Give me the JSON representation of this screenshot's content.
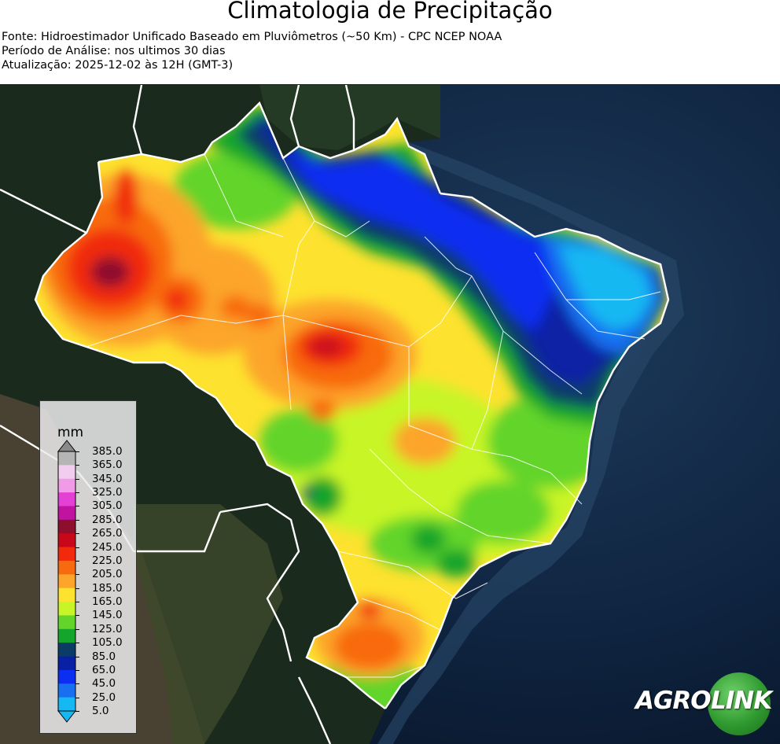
{
  "header": {
    "title": "Climatologia de Precipitação",
    "source": "Fonte: Hidroestimador Unificado Baseado em Pluviômetros (~50 Km) - CPC NCEP NOAA",
    "period": "Período de Análise: nos ultimos 30 dias",
    "updated": "Atualização: 2025-12-02 às 12H (GMT-3)"
  },
  "legend": {
    "unit": "mm",
    "ticks": [
      "385.0",
      "365.0",
      "345.0",
      "325.0",
      "305.0",
      "285.0",
      "265.0",
      "245.0",
      "225.0",
      "205.0",
      "185.0",
      "165.0",
      "145.0",
      "125.0",
      "105.0",
      "85.0",
      "65.0",
      "45.0",
      "25.0",
      "5.0"
    ],
    "colors": [
      "#8a8a8a",
      "#b5b5b5",
      "#f3cdf0",
      "#f09ae8",
      "#e540d6",
      "#c0139f",
      "#8e0f2d",
      "#c8081a",
      "#f12a0c",
      "#f86a10",
      "#fca52a",
      "#fde22f",
      "#c8f526",
      "#62d42a",
      "#14a52c",
      "#0a3c66",
      "#0821a4",
      "#0b2ef2",
      "#1870f0",
      "#14b8f2"
    ]
  },
  "logo": {
    "left": "AGRO",
    "right": "LINK"
  }
}
